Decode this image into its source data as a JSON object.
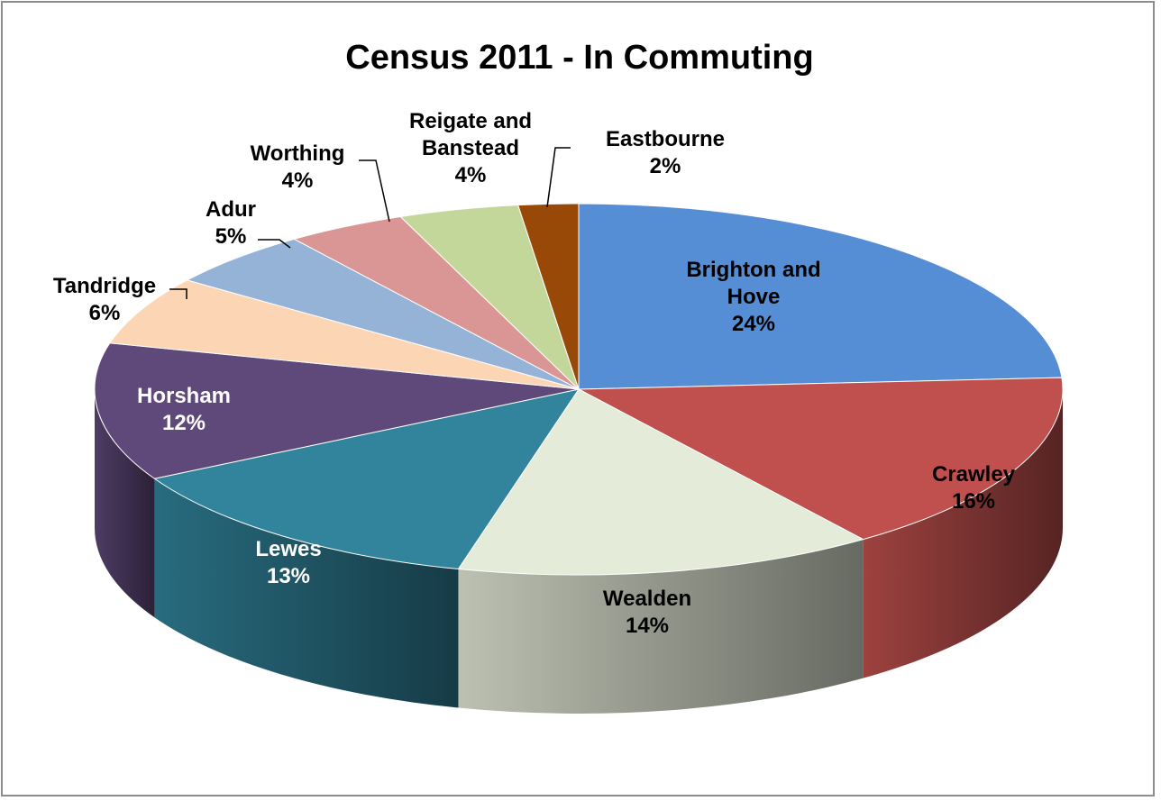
{
  "chart_data": {
    "type": "pie",
    "style": "3d",
    "title": "Census 2011 - In Commuting",
    "legend": "none",
    "slices": [
      {
        "label_lines": [
          "Brighton and",
          "Hove"
        ],
        "pct_label": "24%",
        "value": 24,
        "color": "#558ed5"
      },
      {
        "label_lines": [
          "Crawley"
        ],
        "pct_label": "16%",
        "value": 16,
        "color": "#c0504d"
      },
      {
        "label_lines": [
          "Wealden"
        ],
        "pct_label": "14%",
        "value": 14,
        "color": "#e5ebd9"
      },
      {
        "label_lines": [
          "Lewes"
        ],
        "pct_label": "13%",
        "value": 13,
        "color": "#31849b"
      },
      {
        "label_lines": [
          "Horsham"
        ],
        "pct_label": "12%",
        "value": 12,
        "color": "#5f497a"
      },
      {
        "label_lines": [
          "Tandridge"
        ],
        "pct_label": "6%",
        "value": 6,
        "color": "#fcd5b4"
      },
      {
        "label_lines": [
          "Adur"
        ],
        "pct_label": "5%",
        "value": 5,
        "color": "#95b3d7"
      },
      {
        "label_lines": [
          "Worthing"
        ],
        "pct_label": "4%",
        "value": 4,
        "color": "#da9694"
      },
      {
        "label_lines": [
          "Reigate and",
          "Banstead"
        ],
        "pct_label": "4%",
        "value": 4,
        "color": "#c4d79b"
      },
      {
        "label_lines": [
          "Eastbourne"
        ],
        "pct_label": "2%",
        "value": 2,
        "color": "#984807"
      }
    ]
  }
}
